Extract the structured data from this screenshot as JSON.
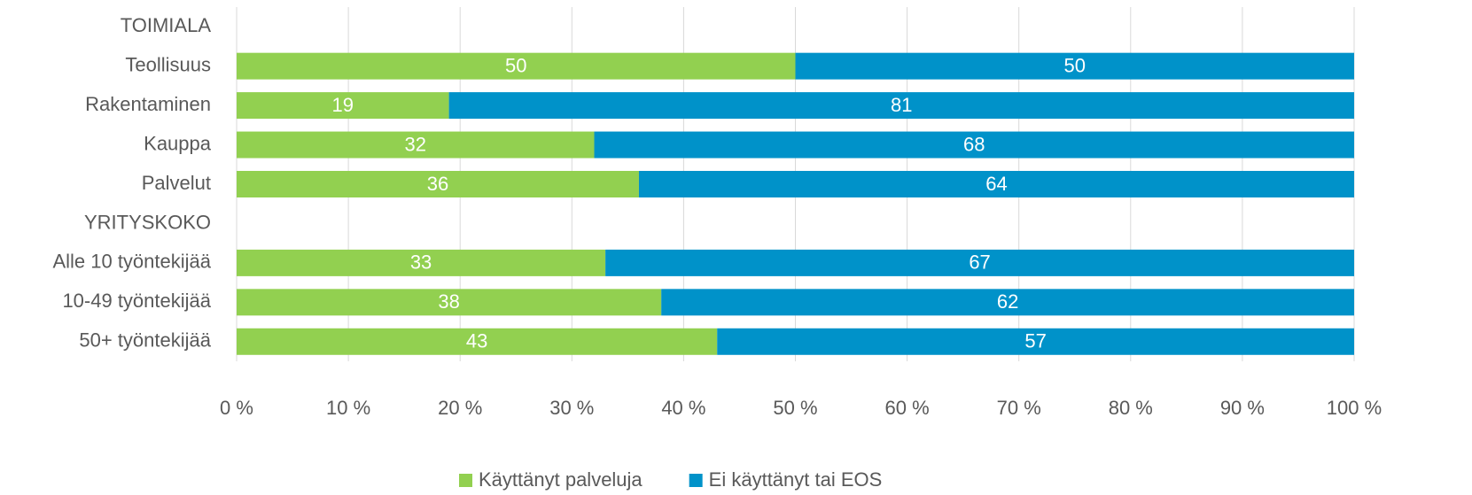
{
  "chart_data": {
    "type": "stacked-barh",
    "categories": [
      "TOIMIALA",
      "Teollisuus",
      "Rakentaminen",
      "Kauppa",
      "Palvelut",
      "YRITYSKOKO",
      "Alle 10 työntekijää",
      "10-49 työntekijää",
      "50+ työntekijää"
    ],
    "series": [
      {
        "name": "Käyttänyt palveluja",
        "color": "#92d050",
        "values": [
          null,
          50,
          19,
          32,
          36,
          null,
          33,
          38,
          43
        ]
      },
      {
        "name": "Ei käyttänyt tai EOS",
        "color": "#0092c9",
        "values": [
          null,
          50,
          81,
          68,
          64,
          null,
          67,
          62,
          57
        ]
      }
    ],
    "xlim": [
      0,
      100
    ],
    "xticks": [
      {
        "value": 0,
        "label": "0 %"
      },
      {
        "value": 10,
        "label": "10 %"
      },
      {
        "value": 20,
        "label": "20 %"
      },
      {
        "value": 30,
        "label": "30 %"
      },
      {
        "value": 40,
        "label": "40 %"
      },
      {
        "value": 50,
        "label": "50 %"
      },
      {
        "value": 60,
        "label": "60 %"
      },
      {
        "value": 70,
        "label": "70 %"
      },
      {
        "value": 80,
        "label": "80 %"
      },
      {
        "value": 90,
        "label": "90 %"
      },
      {
        "value": 100,
        "label": "100 %"
      }
    ],
    "grid": true,
    "legend": "bottom"
  }
}
